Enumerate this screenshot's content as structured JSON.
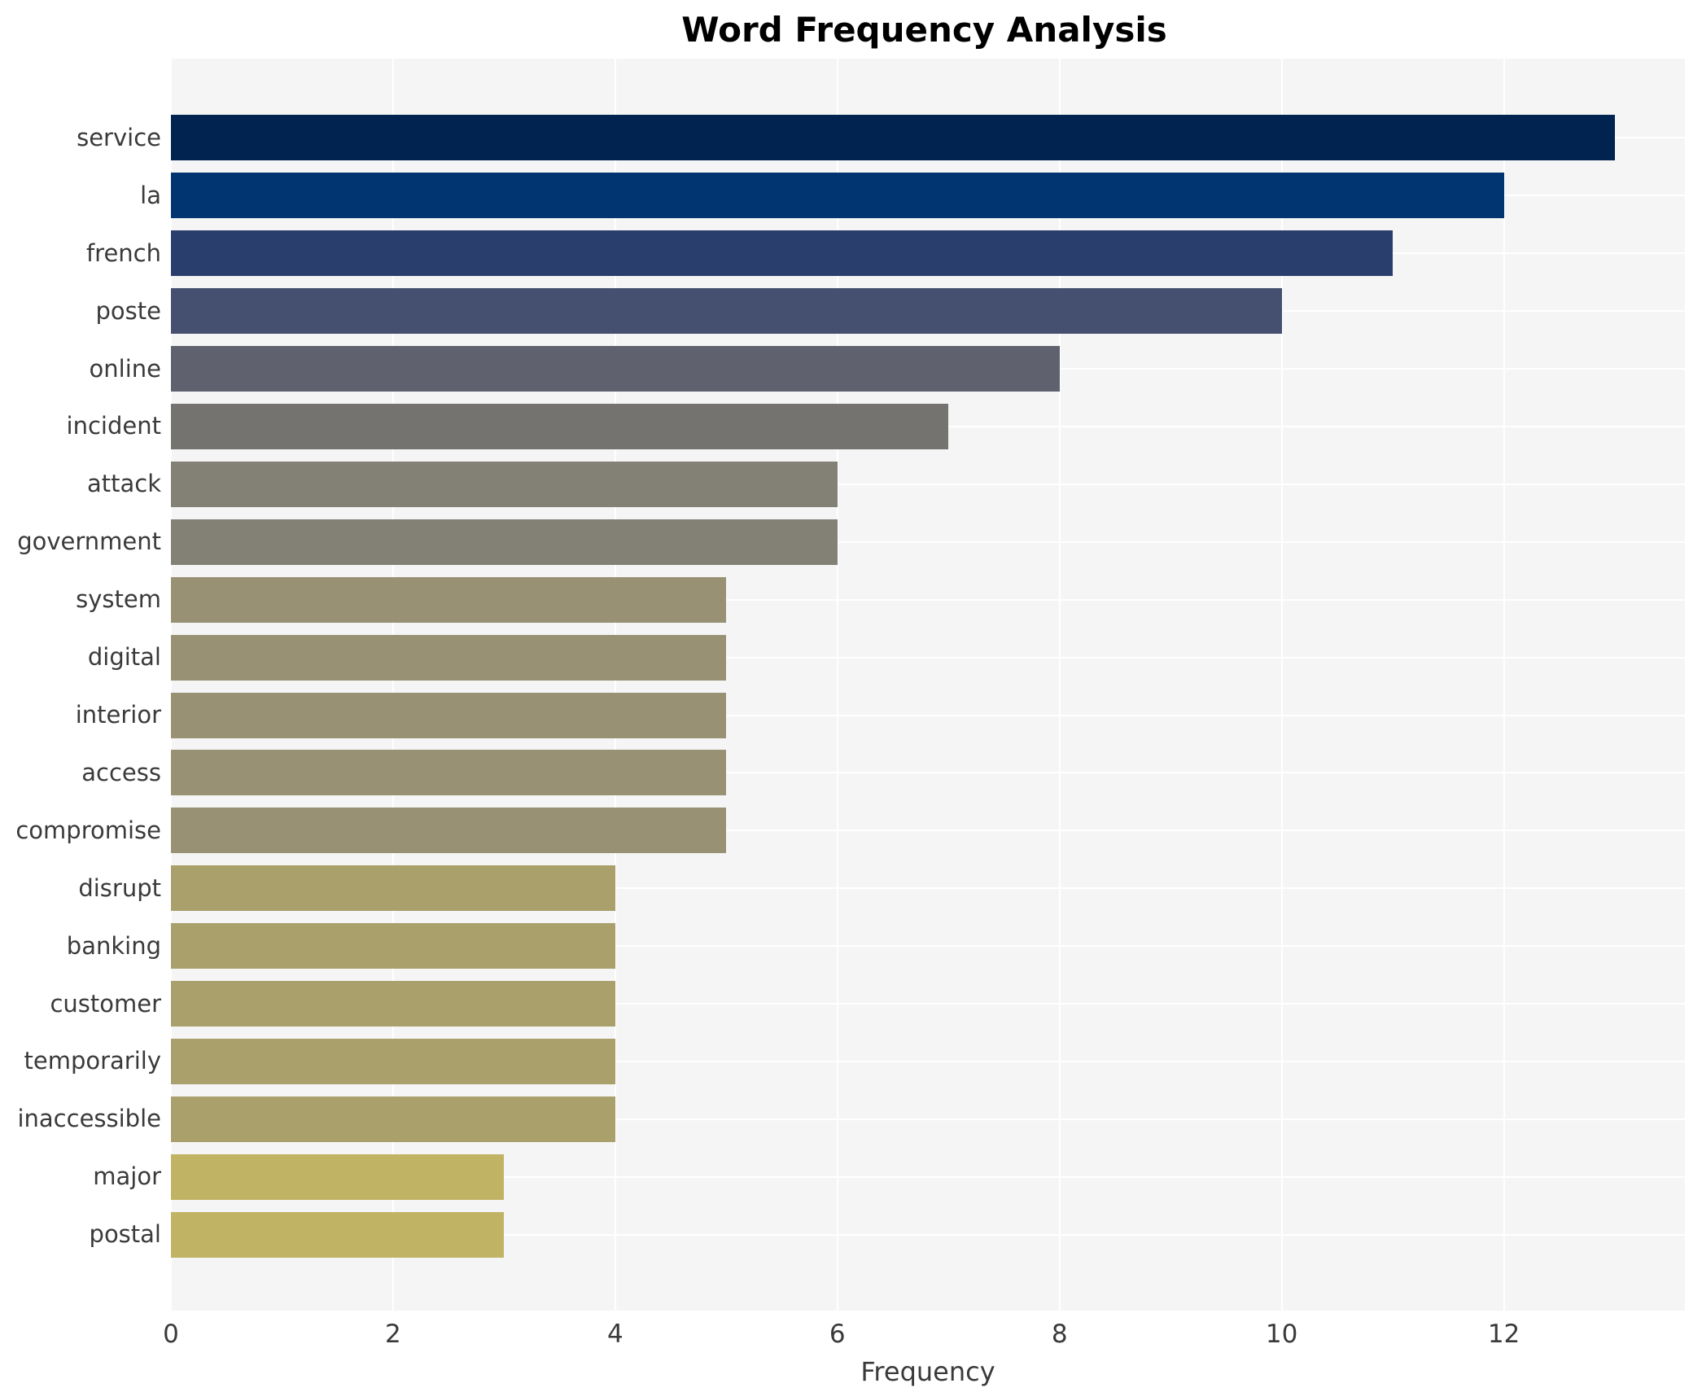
{
  "title": "Word Frequency Analysis",
  "xlabel": "Frequency",
  "chart_data": {
    "type": "bar",
    "orientation": "horizontal",
    "title": "Word Frequency Analysis",
    "xlabel": "Frequency",
    "ylabel": "",
    "categories": [
      "service",
      "la",
      "french",
      "poste",
      "online",
      "incident",
      "attack",
      "government",
      "system",
      "digital",
      "interior",
      "access",
      "compromise",
      "disrupt",
      "banking",
      "customer",
      "temporarily",
      "inaccessible",
      "major",
      "postal"
    ],
    "values": [
      13,
      12,
      11,
      10,
      8,
      7,
      6,
      6,
      5,
      5,
      5,
      5,
      5,
      4,
      4,
      4,
      4,
      4,
      3,
      3
    ],
    "bar_colors": [
      "#00234f",
      "#003571",
      "#2a3e6d",
      "#454f6f",
      "#5f626e",
      "#747370",
      "#838076",
      "#838076",
      "#989173",
      "#989173",
      "#989173",
      "#989173",
      "#989173",
      "#a9a06c",
      "#a9a06c",
      "#a9a06c",
      "#a9a06c",
      "#a9a06c",
      "#c0b364",
      "#c0b364"
    ],
    "xlim": [
      0,
      13.63
    ],
    "xticks": [
      0,
      2,
      4,
      6,
      8,
      10,
      12
    ],
    "grid": true,
    "grid_color": "#ffffff",
    "plot_bg": "#f5f5f6",
    "figure_bg": "#ffffff",
    "tick_text_color": "#3a3a3a",
    "legend": false
  }
}
